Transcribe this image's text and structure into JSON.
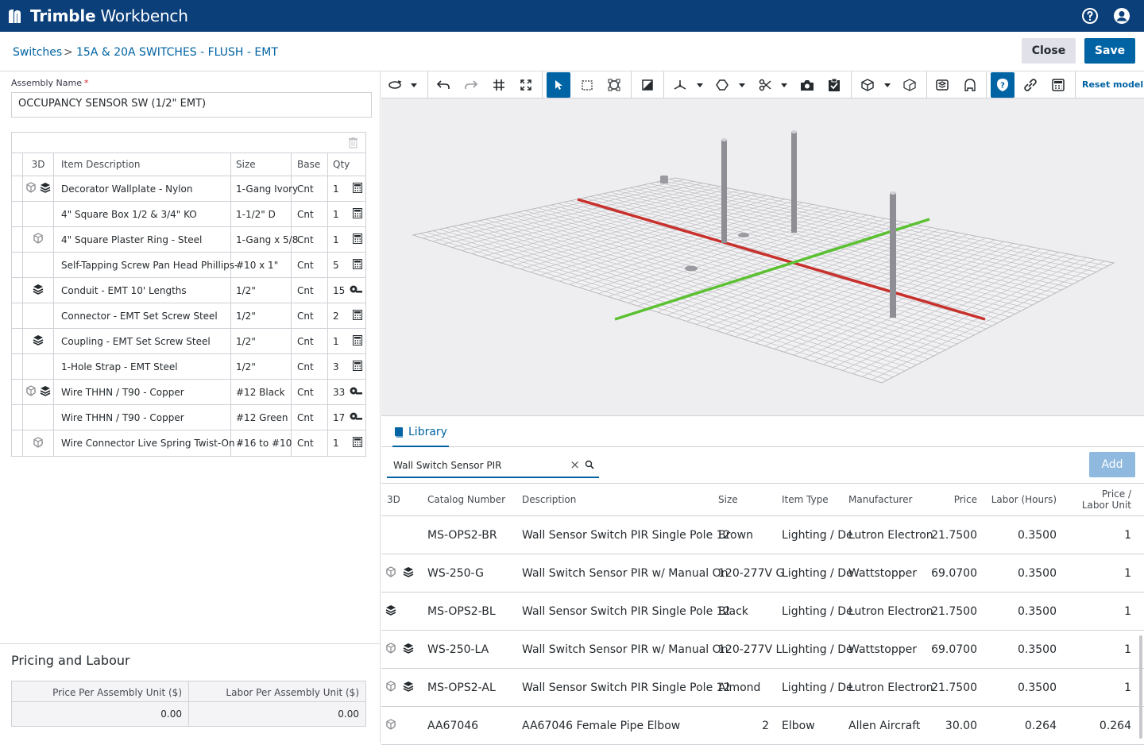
{
  "app": {
    "name_bold": "Trimble",
    "name_light": "Workbench"
  },
  "breadcrumb": {
    "parent": "Switches",
    "separator": ">",
    "current": "15A & 20A SWITCHES - FLUSH - EMT"
  },
  "actions": {
    "close": "Close",
    "save": "Save"
  },
  "assembly": {
    "name_label": "Assembly Name",
    "required_mark": "*",
    "name_value": "OCCUPANCY SENSOR SW  (1/2\" EMT)"
  },
  "items_grid": {
    "headers": {
      "3d": "3D",
      "desc": "Item Description",
      "size": "Size",
      "base": "Base",
      "qty": "Qty"
    },
    "rows": [
      {
        "desc": "Decorator Wallplate - Nylon",
        "size": "1-Gang Ivory",
        "base": "Cnt",
        "qty": "1"
      },
      {
        "desc": "4\" Square Box 1/2 & 3/4\" KO",
        "size": "1-1/2\" D",
        "base": "Cnt",
        "qty": "1"
      },
      {
        "desc": "4\" Square Plaster Ring - Steel",
        "size": "1-Gang x 5/8",
        "base": "Cnt",
        "qty": "1"
      },
      {
        "desc": "Self-Tapping Screw Pan Head Phillips-",
        "size": "#10 x 1\"",
        "base": "Cnt",
        "qty": "5"
      },
      {
        "desc": "Conduit - EMT 10' Lengths",
        "size": "1/2\"",
        "base": "Cnt",
        "qty": "15"
      },
      {
        "desc": "Connector - EMT Set Screw Steel",
        "size": "1/2\"",
        "base": "Cnt",
        "qty": "2"
      },
      {
        "desc": "Coupling - EMT Set Screw Steel",
        "size": "1/2\"",
        "base": "Cnt",
        "qty": "1"
      },
      {
        "desc": "1-Hole Strap - EMT Steel",
        "size": "1/2\"",
        "base": "Cnt",
        "qty": "3"
      },
      {
        "desc": "Wire THHN / T90 - Copper",
        "size": "#12 Black",
        "base": "Cnt",
        "qty": "33"
      },
      {
        "desc": "Wire THHN / T90 - Copper",
        "size": "#12 Green",
        "base": "Cnt",
        "qty": "17"
      },
      {
        "desc": "Wire Connector Live Spring Twist-On -",
        "size": "#16 to #10",
        "base": "Cnt",
        "qty": "1"
      }
    ]
  },
  "pricing": {
    "title": "Pricing and Labour",
    "price_header": "Price Per Assembly Unit ($)",
    "labor_header": "Labor Per Assembly Unit ($)",
    "price_value": "0.00",
    "labor_value": "0.00"
  },
  "viewer": {
    "reset_label": "Reset model"
  },
  "library": {
    "tab_label": "Library",
    "search_value": "Wall Switch Sensor PIR",
    "add_label": "Add",
    "headers": {
      "3d": "3D",
      "catalog": "Catalog Number",
      "desc": "Description",
      "size": "Size",
      "type": "Item Type",
      "mfr": "Manufacturer",
      "price": "Price",
      "labor": "Labor (Hours)",
      "plu_1": "Price /",
      "plu_2": "Labor Unit"
    },
    "rows": [
      {
        "catalog": "MS-OPS2-BR",
        "desc": "Wall Sensor Switch PIR Single Pole 12",
        "size": "Brown",
        "type": "Lighting / De",
        "mfr": "Lutron Electron",
        "price": "21.7500",
        "labor": "0.3500",
        "plu": "1"
      },
      {
        "catalog": "WS-250-G",
        "desc": "Wall Switch Sensor PIR w/ Manual On",
        "size": "120-277V G",
        "type": "Lighting / De",
        "mfr": "Wattstopper",
        "price": "69.0700",
        "labor": "0.3500",
        "plu": "1"
      },
      {
        "catalog": "MS-OPS2-BL",
        "desc": "Wall Sensor Switch PIR Single Pole 12",
        "size": "Black",
        "type": "Lighting / De",
        "mfr": "Lutron Electron",
        "price": "21.7500",
        "labor": "0.3500",
        "plu": "1"
      },
      {
        "catalog": "WS-250-LA",
        "desc": "Wall Switch Sensor PIR w/ Manual On",
        "size": "120-277V L",
        "type": "Lighting / De",
        "mfr": "Wattstopper",
        "price": "69.0700",
        "labor": "0.3500",
        "plu": "1"
      },
      {
        "catalog": "MS-OPS2-AL",
        "desc": "Wall Sensor Switch PIR Single Pole 12",
        "size": "Almond",
        "type": "Lighting / De",
        "mfr": "Lutron Electron",
        "price": "21.7500",
        "labor": "0.3500",
        "plu": "1"
      },
      {
        "catalog": "AA67046",
        "desc": "AA67046 Female Pipe Elbow",
        "size": "2",
        "type": "Elbow",
        "mfr": "Allen Aircraft",
        "price": "30.00",
        "labor": "0.264",
        "plu": "0.264"
      }
    ]
  },
  "colors": {
    "brand": "#0b3f7a",
    "accent": "#0063a3",
    "x_axis": "#c8302b",
    "y_axis": "#5cc132"
  }
}
